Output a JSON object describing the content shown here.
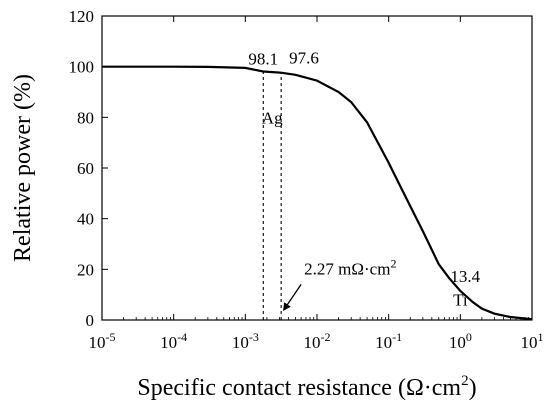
{
  "chart_data": {
    "type": "line",
    "xscale": "log",
    "xlim": [
      1e-05,
      10
    ],
    "ylim": [
      0,
      120
    ],
    "xlabel": "Specific contact resistance (Ω·cm²)",
    "ylabel": "Relative power  (%)",
    "x_ticks": [
      1e-05,
      0.0001,
      0.001,
      0.01,
      0.1,
      1,
      10
    ],
    "x_tick_labels": [
      {
        "base": "10",
        "exp": "-5"
      },
      {
        "base": "10",
        "exp": "-4"
      },
      {
        "base": "10",
        "exp": "-3"
      },
      {
        "base": "10",
        "exp": "-2"
      },
      {
        "base": "10",
        "exp": "-1"
      },
      {
        "base": "10",
        "exp": "0"
      },
      {
        "base": "10",
        "exp": "1"
      }
    ],
    "y_ticks": [
      0,
      20,
      40,
      60,
      80,
      100,
      120
    ],
    "grid": false,
    "series": [
      {
        "x": [
          1e-05,
          3e-05,
          0.0001,
          0.0003,
          0.001,
          0.00178,
          0.00227,
          0.00316,
          0.005,
          0.01,
          0.02,
          0.03,
          0.05,
          0.1,
          0.15,
          0.2,
          0.3,
          0.5,
          0.7,
          1,
          1.5,
          2,
          3,
          5,
          10
        ],
        "y": [
          100,
          100,
          100,
          99.9,
          99.5,
          98.1,
          97.9,
          97.6,
          96.8,
          94.5,
          90,
          86,
          78,
          62,
          52,
          45,
          35,
          22,
          16.5,
          11.5,
          7,
          4.5,
          2.5,
          1.2,
          0.3
        ]
      }
    ],
    "vlines": [
      {
        "x": 0.00178,
        "y": 98.1
      },
      {
        "x": 0.00316,
        "y": 97.6
      }
    ],
    "annotations": {
      "v1": "98.1",
      "v2": "97.6",
      "ag": "Ag",
      "contact_label": "2.27 mΩ·cm",
      "contact_label_sup": "2",
      "ti_value": "13.4",
      "ti": "Ti"
    },
    "annotation_positions": {
      "v1": {
        "x": 0.00178,
        "y": 98.1
      },
      "v2": {
        "x": 0.00316,
        "y": 97.6
      },
      "ag": {
        "x": 0.00237,
        "y": 80
      },
      "contact_arrow_tip": {
        "x": 0.00316,
        "y": 3
      },
      "ti_value": {
        "x": 1,
        "y": 13.4
      },
      "ti": {
        "x": 1,
        "y": 8
      }
    }
  }
}
